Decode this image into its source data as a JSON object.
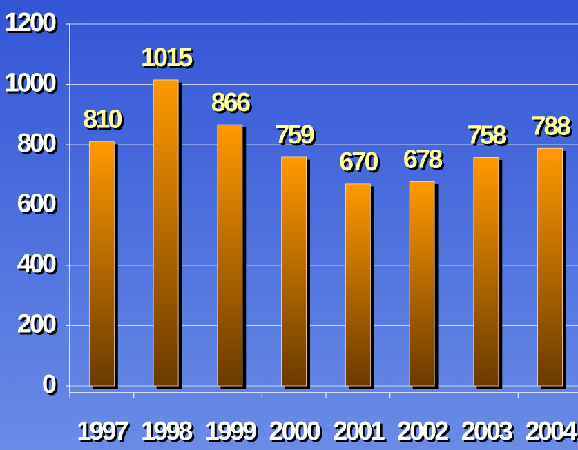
{
  "chart_data": {
    "type": "bar",
    "categories": [
      "1997",
      "1998",
      "1999",
      "2000",
      "2001",
      "2002",
      "2003",
      "2004"
    ],
    "values": [
      810,
      1015,
      866,
      759,
      670,
      678,
      758,
      788
    ],
    "color": "#ff9900",
    "ylim": [
      0,
      1200
    ],
    "yticks": [
      0,
      200,
      400,
      600,
      800,
      1000,
      1200
    ],
    "grid": true
  }
}
